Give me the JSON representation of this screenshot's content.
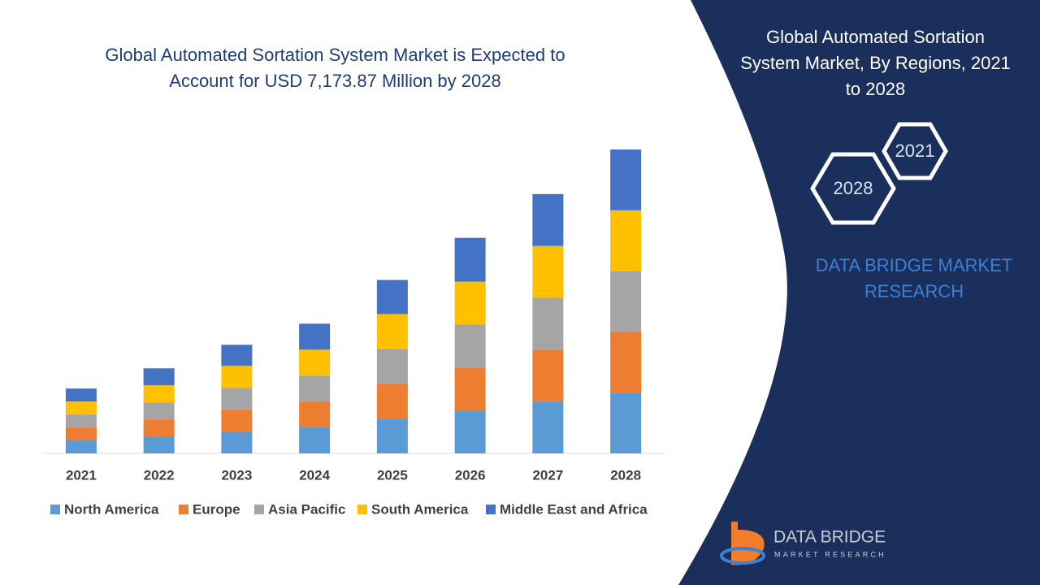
{
  "chart_data": {
    "type": "stacked_bar",
    "title": "Global Automated Sortation System Market is Expected to Account for  USD 7,173.87 Million by 2028",
    "categories": [
      "2021",
      "2022",
      "2023",
      "2024",
      "2025",
      "2026",
      "2027",
      "2028"
    ],
    "series": [
      {
        "name": "North America",
        "color": "#5b9bd5",
        "values": [
          16,
          21,
          27,
          32,
          43,
          53,
          64,
          75
        ]
      },
      {
        "name": "Europe",
        "color": "#ed7d31",
        "values": [
          16,
          21,
          27,
          32,
          43,
          53,
          64,
          75
        ]
      },
      {
        "name": "Asia Pacific",
        "color": "#a5a5a5",
        "values": [
          16,
          21,
          27,
          32,
          43,
          53,
          64,
          75
        ]
      },
      {
        "name": "South America",
        "color": "#ffc000",
        "values": [
          16,
          21,
          27,
          32,
          43,
          53,
          64,
          75
        ]
      },
      {
        "name": "Middle East and Africa",
        "color": "#4472c4",
        "values": [
          16,
          21,
          26,
          32,
          42,
          54,
          64,
          75
        ]
      }
    ],
    "legend": "bottom"
  },
  "panel": {
    "title": "Global Automated Sortation System Market, By Regions, 2021 to 2028",
    "hex_labels": [
      "2021",
      "2028"
    ],
    "brand": "DATA BRIDGE MARKET RESEARCH"
  },
  "logo": {
    "name": "DATA BRIDGE",
    "tagline": "MARKET RESEARCH"
  }
}
